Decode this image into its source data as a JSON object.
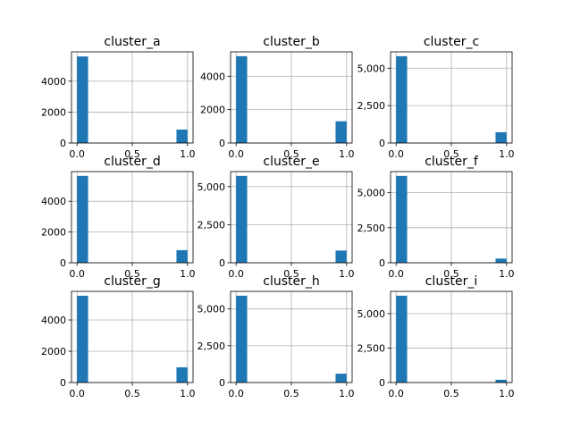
{
  "chart_data": [
    {
      "type": "bar",
      "title": "cluster_a",
      "x": [
        0,
        1
      ],
      "values": [
        5600,
        870
      ],
      "xlim": [
        -0.05,
        1.05
      ],
      "ylim": [
        0,
        5900
      ],
      "xticks": [
        0,
        0.5,
        1
      ],
      "xtick_labels": [
        "0.0",
        "0.5",
        "1.0"
      ],
      "yticks": [
        0,
        2000,
        4000
      ],
      "ytick_labels": [
        "0",
        "2000",
        "4000"
      ],
      "grid": true
    },
    {
      "type": "bar",
      "title": "cluster_b",
      "x": [
        0,
        1
      ],
      "values": [
        5200,
        1300
      ],
      "xlim": [
        -0.05,
        1.05
      ],
      "ylim": [
        0,
        5460
      ],
      "xticks": [
        0,
        0.5,
        1
      ],
      "xtick_labels": [
        "0.0",
        "0.5",
        "1.0"
      ],
      "yticks": [
        0,
        2000,
        4000
      ],
      "ytick_labels": [
        "0",
        "2000",
        "4000"
      ],
      "grid": true
    },
    {
      "type": "bar",
      "title": "cluster_c",
      "x": [
        0,
        1
      ],
      "values": [
        5800,
        720
      ],
      "xlim": [
        -0.05,
        1.05
      ],
      "ylim": [
        0,
        6090
      ],
      "xticks": [
        0,
        0.5,
        1
      ],
      "xtick_labels": [
        "0.0",
        "0.5",
        "1.0"
      ],
      "yticks": [
        0,
        2500,
        5000
      ],
      "ytick_labels": [
        "0",
        "2,500",
        "5,000"
      ],
      "grid": true
    },
    {
      "type": "bar",
      "title": "cluster_d",
      "x": [
        0,
        1
      ],
      "values": [
        5650,
        820
      ],
      "xlim": [
        -0.05,
        1.05
      ],
      "ylim": [
        0,
        5930
      ],
      "xticks": [
        0,
        0.5,
        1
      ],
      "xtick_labels": [
        "0.0",
        "0.5",
        "1.0"
      ],
      "yticks": [
        0,
        2000,
        4000
      ],
      "ytick_labels": [
        "0",
        "2000",
        "4000"
      ],
      "grid": true
    },
    {
      "type": "bar",
      "title": "cluster_e",
      "x": [
        0,
        1
      ],
      "values": [
        5700,
        800
      ],
      "xlim": [
        -0.05,
        1.05
      ],
      "ylim": [
        0,
        5985
      ],
      "xticks": [
        0,
        0.5,
        1
      ],
      "xtick_labels": [
        "0.0",
        "0.5",
        "1.0"
      ],
      "yticks": [
        0,
        2500,
        5000
      ],
      "ytick_labels": [
        "0",
        "2,500",
        "5,000"
      ],
      "grid": true
    },
    {
      "type": "bar",
      "title": "cluster_f",
      "x": [
        0,
        1
      ],
      "values": [
        6200,
        300
      ],
      "xlim": [
        -0.05,
        1.05
      ],
      "ylim": [
        0,
        6510
      ],
      "xticks": [
        0,
        0.5,
        1
      ],
      "xtick_labels": [
        "0.0",
        "0.5",
        "1.0"
      ],
      "yticks": [
        0,
        2500,
        5000
      ],
      "ytick_labels": [
        "0",
        "2,500",
        "5,000"
      ],
      "grid": true
    },
    {
      "type": "bar",
      "title": "cluster_g",
      "x": [
        0,
        1
      ],
      "values": [
        5550,
        970
      ],
      "xlim": [
        -0.05,
        1.05
      ],
      "ylim": [
        0,
        5830
      ],
      "xticks": [
        0,
        0.5,
        1
      ],
      "xtick_labels": [
        "0.0",
        "0.5",
        "1.0"
      ],
      "yticks": [
        0,
        2000,
        4000
      ],
      "ytick_labels": [
        "0",
        "2000",
        "4000"
      ],
      "grid": true
    },
    {
      "type": "bar",
      "title": "cluster_h",
      "x": [
        0,
        1
      ],
      "values": [
        5900,
        600
      ],
      "xlim": [
        -0.05,
        1.05
      ],
      "ylim": [
        0,
        6195
      ],
      "xticks": [
        0,
        0.5,
        1
      ],
      "xtick_labels": [
        "0.0",
        "0.5",
        "1.0"
      ],
      "yticks": [
        0,
        2500,
        5000
      ],
      "ytick_labels": [
        "0",
        "2,500",
        "5,000"
      ],
      "grid": true
    },
    {
      "type": "bar",
      "title": "cluster_i",
      "x": [
        0,
        1
      ],
      "values": [
        6300,
        200
      ],
      "xlim": [
        -0.05,
        1.05
      ],
      "ylim": [
        0,
        6615
      ],
      "xticks": [
        0,
        0.5,
        1
      ],
      "xtick_labels": [
        "0.0",
        "0.5",
        "1.0"
      ],
      "yticks": [
        0,
        2500,
        5000
      ],
      "ytick_labels": [
        "0",
        "2,500",
        "5,000"
      ],
      "grid": true
    }
  ],
  "colors": {
    "bar": "#1f77b4",
    "grid": "#b0b0b0",
    "background": "#ffffff"
  }
}
